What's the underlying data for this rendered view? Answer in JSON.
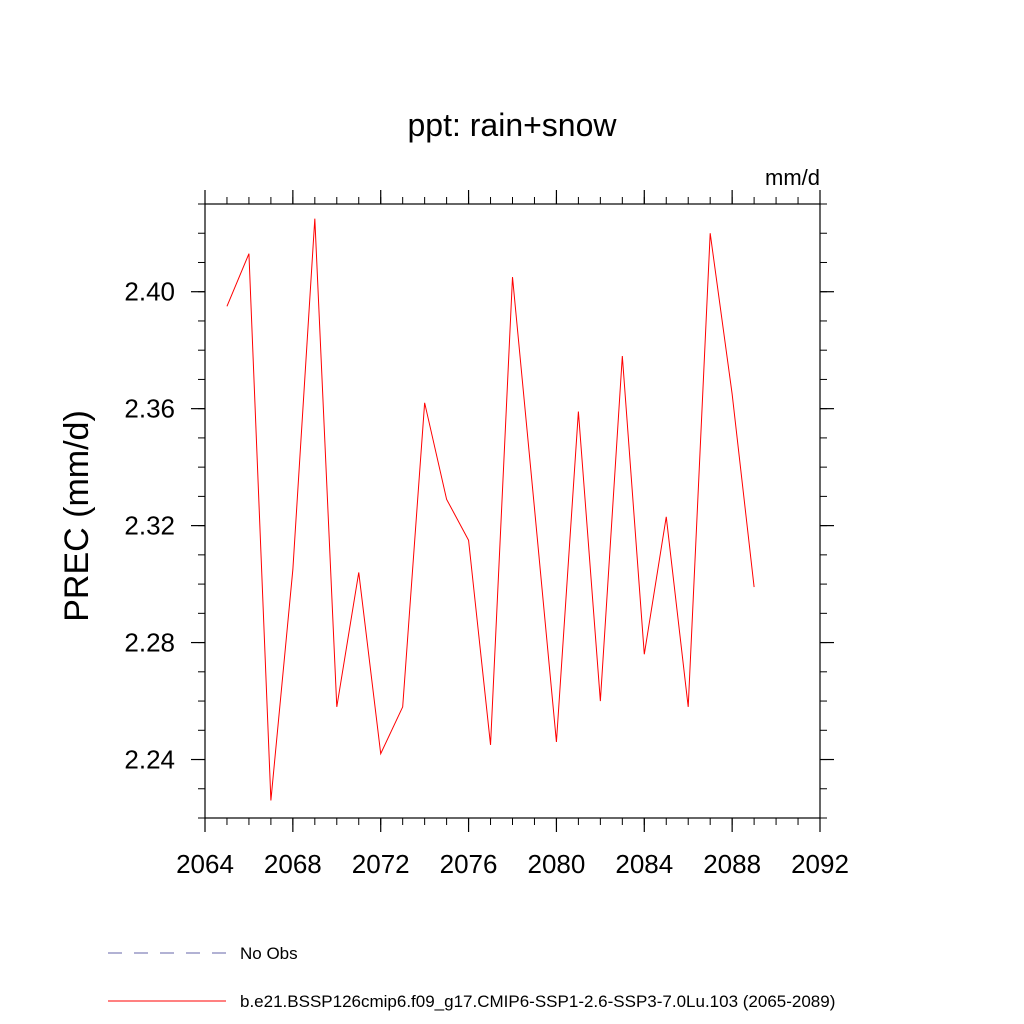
{
  "chart_data": {
    "type": "line",
    "title": "ppt: rain+snow",
    "units": "mm/d",
    "ylabel": "PREC  (mm/d)",
    "xlabel": "",
    "xlim": [
      2064,
      2092
    ],
    "ylim": [
      2.22,
      2.43
    ],
    "x_major_ticks": [
      2064,
      2068,
      2072,
      2076,
      2080,
      2084,
      2088,
      2092
    ],
    "x_minor_step": 1,
    "y_major_ticks": [
      2.24,
      2.28,
      2.32,
      2.36,
      2.4
    ],
    "y_minor_step": 0.01,
    "y_tick_decimals": 2,
    "grid": false,
    "series": [
      {
        "name": "b.e21.BSSP126cmip6.f09_g17.CMIP6-SSP1-2.6-SSP3-7.0Lu.103 (2065-2089)",
        "color": "#ff0000",
        "x": [
          2065,
          2066,
          2067,
          2068,
          2069,
          2070,
          2071,
          2072,
          2073,
          2074,
          2075,
          2076,
          2077,
          2078,
          2079,
          2080,
          2081,
          2082,
          2083,
          2084,
          2085,
          2086,
          2087,
          2088,
          2089
        ],
        "values": [
          2.395,
          2.413,
          2.226,
          2.305,
          2.425,
          2.258,
          2.304,
          2.242,
          2.258,
          2.362,
          2.329,
          2.315,
          2.245,
          2.405,
          2.326,
          2.246,
          2.359,
          2.26,
          2.378,
          2.276,
          2.323,
          2.258,
          2.42,
          2.365,
          2.299
        ]
      }
    ],
    "legend": {
      "placement": "bottom",
      "entries": [
        {
          "label": "No Obs",
          "color": "#6666aa",
          "style": "dashed"
        },
        {
          "label": "b.e21.BSSP126cmip6.f09_g17.CMIP6-SSP1-2.6-SSP3-7.0Lu.103 (2065-2089)",
          "color": "#ff0000",
          "style": "solid"
        }
      ]
    }
  }
}
